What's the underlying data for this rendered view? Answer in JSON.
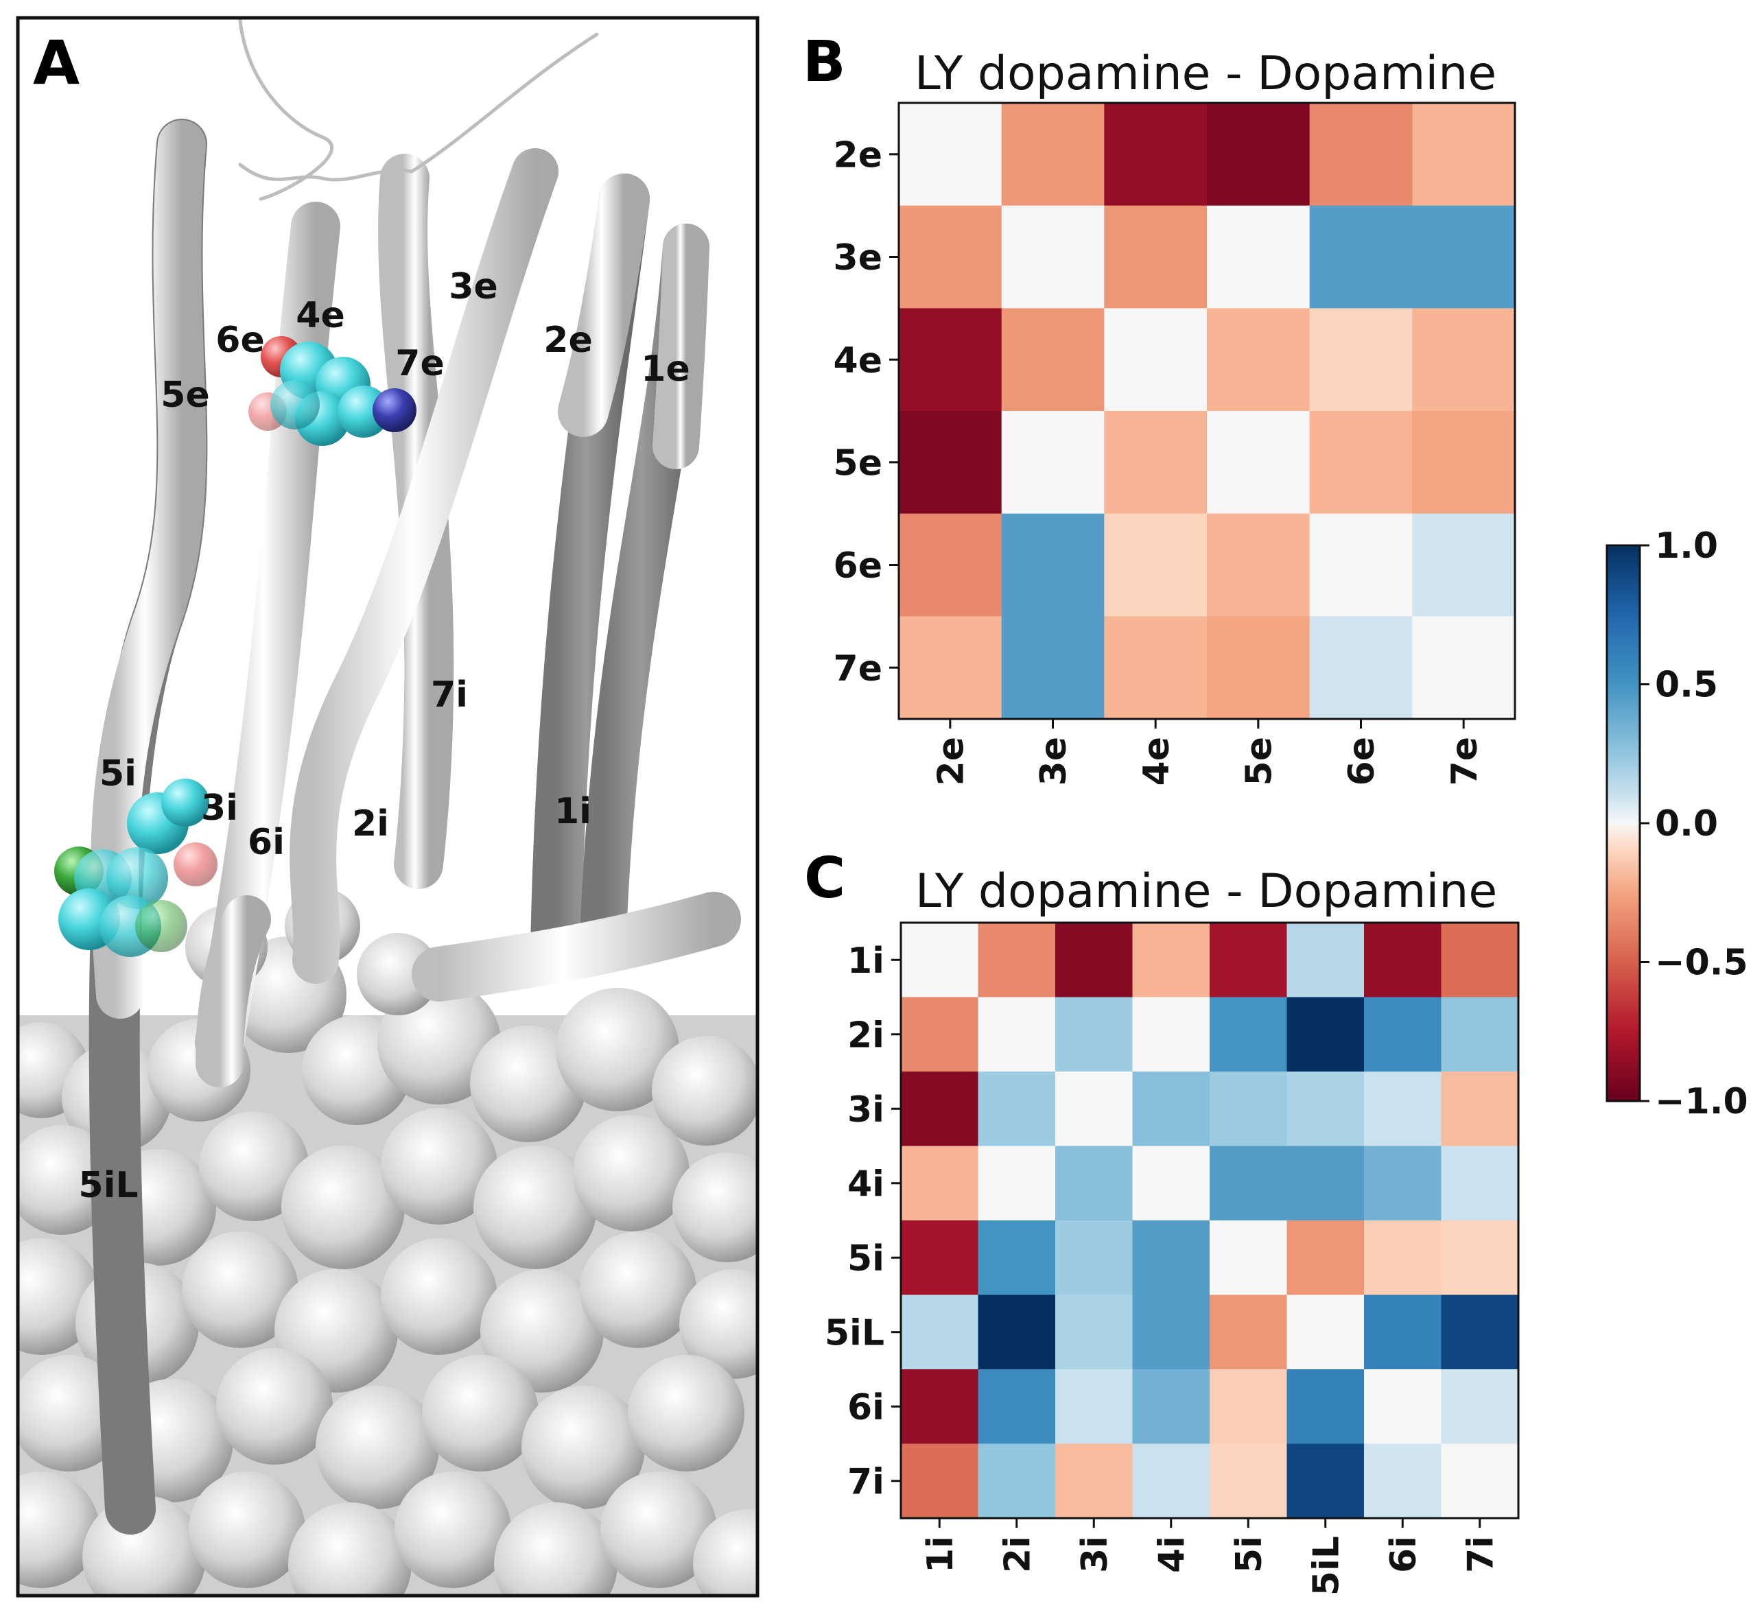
{
  "panel_a": {
    "letter": "A",
    "helix_labels": [
      "2e",
      "1e",
      "3e",
      "4e",
      "6e",
      "7e",
      "5e",
      "7i",
      "5i",
      "3i",
      "6i",
      "2i",
      "1i",
      "5iL"
    ]
  },
  "colors": {
    "cell_edge": "#222222",
    "helix_light": "#eeeeee",
    "helix_dark": "#8a8a8a",
    "surface": "#d6d6d6",
    "ligand_cyan": "#48d4dc",
    "ligand_red": "#e34040",
    "ligand_blue": "#3a3fb0",
    "ligand_green": "#3aa83a"
  },
  "colorbar": {
    "colormap": "RdBu",
    "ticks": [
      "1.0",
      "0.5",
      "0.0",
      "−0.5",
      "−1.0"
    ],
    "tick_values": [
      1.0,
      0.5,
      0.0,
      -0.5,
      -1.0
    ],
    "range": [
      -1.0,
      1.0
    ]
  },
  "chart_data": [
    {
      "letter": "B",
      "type": "heatmap",
      "title": "LY dopamine - Dopamine",
      "rows": [
        "2e",
        "3e",
        "4e",
        "5e",
        "6e",
        "7e"
      ],
      "cols": [
        "2e",
        "3e",
        "4e",
        "5e",
        "6e",
        "7e"
      ],
      "values": [
        [
          0.0,
          -0.3,
          -0.85,
          -0.92,
          -0.35,
          -0.2
        ],
        [
          -0.3,
          0.0,
          -0.3,
          0.0,
          0.45,
          0.45
        ],
        [
          -0.85,
          -0.3,
          0.0,
          -0.2,
          -0.1,
          -0.2
        ],
        [
          -0.92,
          0.0,
          -0.2,
          0.0,
          -0.2,
          -0.25
        ],
        [
          -0.35,
          0.45,
          -0.1,
          -0.2,
          0.0,
          0.08
        ],
        [
          -0.2,
          0.45,
          -0.2,
          -0.25,
          0.08,
          0.0
        ]
      ],
      "vmin": -1.0,
      "vmax": 1.0
    },
    {
      "letter": "C",
      "type": "heatmap",
      "title": "LY dopamine - Dopamine",
      "rows": [
        "1i",
        "2i",
        "3i",
        "4i",
        "5i",
        "5iL",
        "6i",
        "7i"
      ],
      "cols": [
        "1i",
        "2i",
        "3i",
        "4i",
        "5i",
        "5iL",
        "6i",
        "7i"
      ],
      "values": [
        [
          0.0,
          -0.35,
          -0.9,
          -0.2,
          -0.8,
          0.15,
          -0.85,
          -0.45
        ],
        [
          -0.35,
          0.0,
          0.22,
          0.0,
          0.5,
          1.0,
          0.55,
          0.25
        ],
        [
          -0.9,
          0.22,
          0.0,
          0.28,
          0.22,
          0.18,
          0.1,
          -0.18
        ],
        [
          -0.2,
          0.0,
          0.28,
          0.0,
          0.45,
          0.45,
          0.35,
          0.1
        ],
        [
          -0.8,
          0.5,
          0.22,
          0.45,
          0.0,
          -0.3,
          -0.12,
          -0.1
        ],
        [
          0.15,
          1.0,
          0.18,
          0.45,
          -0.3,
          0.0,
          0.6,
          0.9
        ],
        [
          -0.85,
          0.55,
          0.1,
          0.35,
          -0.12,
          0.6,
          0.0,
          0.08
        ],
        [
          -0.45,
          0.25,
          -0.18,
          0.1,
          -0.1,
          0.9,
          0.08,
          0.0
        ]
      ],
      "vmin": -1.0,
      "vmax": 1.0
    }
  ]
}
